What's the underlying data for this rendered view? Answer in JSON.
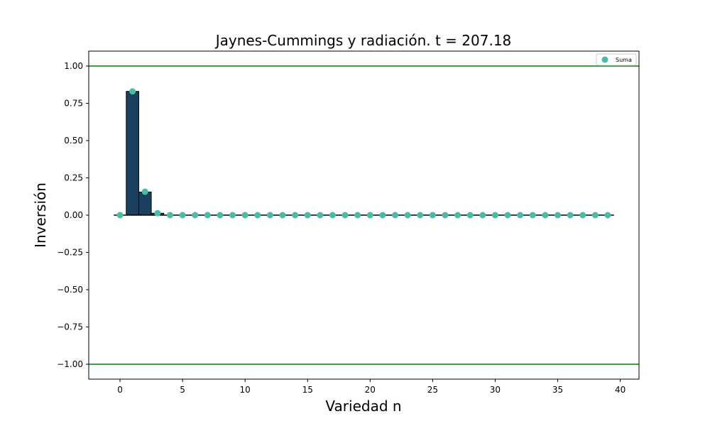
{
  "chart_data": {
    "type": "bar",
    "title": "Jaynes-Cummings y radiación. t = 207.18",
    "xlabel": "Variedad n",
    "ylabel": "Inversión",
    "xlim": [
      -2.5,
      41.5
    ],
    "ylim": [
      -1.1,
      1.1
    ],
    "xticks": [
      0,
      5,
      10,
      15,
      20,
      25,
      30,
      35,
      40
    ],
    "xtick_labels": [
      "0",
      "5",
      "10",
      "15",
      "20",
      "25",
      "30",
      "35",
      "40"
    ],
    "yticks": [
      1.0,
      0.75,
      0.5,
      0.25,
      0.0,
      -0.25,
      -0.5,
      -0.75,
      -1.0
    ],
    "ytick_labels": [
      "1.00",
      "0.75",
      "0.50",
      "0.25",
      "0.00",
      "−0.25",
      "−0.50",
      "−0.75",
      "−1.00"
    ],
    "bars": {
      "x": [
        1,
        2,
        3
      ],
      "values": [
        0.83,
        0.155,
        0.013
      ],
      "color": "#1a3f5f"
    },
    "series": [
      {
        "name": "Suma",
        "type": "scatter",
        "color": "#48bca7",
        "x": [
          0,
          1,
          2,
          3,
          4,
          5,
          6,
          7,
          8,
          9,
          10,
          11,
          12,
          13,
          14,
          15,
          16,
          17,
          18,
          19,
          20,
          21,
          22,
          23,
          24,
          25,
          26,
          27,
          28,
          29,
          30,
          31,
          32,
          33,
          34,
          35,
          36,
          37,
          38,
          39
        ],
        "values": [
          0,
          0.83,
          0.157,
          0.013,
          0,
          0,
          0,
          0,
          0,
          0,
          0,
          0,
          0,
          0,
          0,
          0,
          0,
          0,
          0,
          0,
          0,
          0,
          0,
          0,
          0,
          0,
          0,
          0,
          0,
          0,
          0,
          0,
          0,
          0,
          0,
          0,
          0,
          0,
          0,
          0
        ]
      }
    ],
    "reference_lines": [
      {
        "y": 1.0,
        "color": "#008000"
      },
      {
        "y": -1.0,
        "color": "#008000"
      }
    ],
    "baseline": {
      "y": 0,
      "x_range": [
        -0.5,
        39.5
      ],
      "color": "#000000"
    },
    "legend": {
      "position": "top-right",
      "entries": [
        "Suma"
      ]
    },
    "grid": false
  }
}
